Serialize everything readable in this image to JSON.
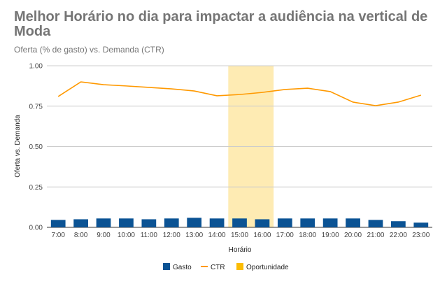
{
  "chart_data": {
    "type": "bar+line",
    "title": "Melhor Horário no dia para impactar a audiência na vertical de Moda",
    "subtitle": "Oferta (% de gasto) vs. Demanda (CTR)",
    "xlabel": "Horário",
    "ylabel": "Oferta vs. Demanda",
    "ylim": [
      0,
      1
    ],
    "yticks": [
      "0.00",
      "0.25",
      "0.50",
      "0.75",
      "1.00"
    ],
    "grid": true,
    "legend_position": "bottom",
    "categories": [
      "7:00",
      "8:00",
      "9:00",
      "10:00",
      "11:00",
      "12:00",
      "13:00",
      "14:00",
      "15:00",
      "16:00",
      "17:00",
      "18:00",
      "19:00",
      "20:00",
      "21:00",
      "22:00",
      "23:00"
    ],
    "series": [
      {
        "name": "Gasto",
        "type": "bar",
        "color": "#0b5394",
        "values": [
          0.046,
          0.05,
          0.055,
          0.055,
          0.05,
          0.055,
          0.059,
          0.055,
          0.055,
          0.05,
          0.055,
          0.055,
          0.055,
          0.055,
          0.046,
          0.038,
          0.029
        ]
      },
      {
        "name": "CTR",
        "type": "line",
        "color": "#ff9900",
        "values": [
          0.81,
          0.9,
          0.883,
          0.875,
          0.866,
          0.857,
          0.844,
          0.814,
          0.822,
          0.835,
          0.853,
          0.861,
          0.84,
          0.775,
          0.753,
          0.775,
          0.818
        ]
      },
      {
        "name": "Oportunidade",
        "type": "band",
        "color": "#fbbc04",
        "range": [
          "15:00",
          "16:00"
        ]
      }
    ]
  }
}
